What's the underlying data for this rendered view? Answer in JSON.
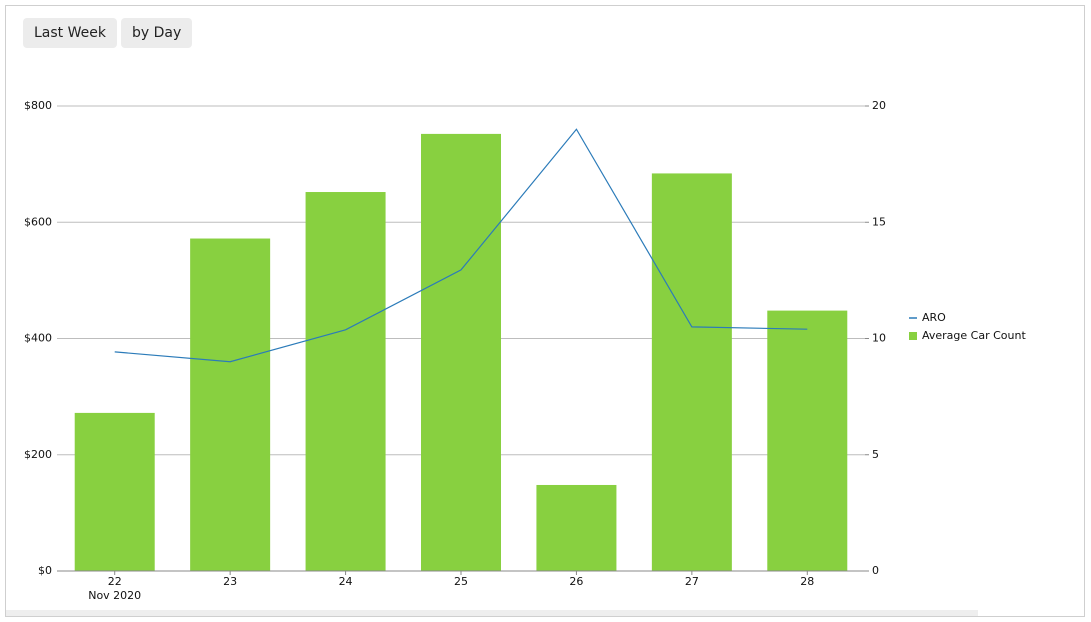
{
  "toolbar": {
    "buttons": [
      "Last Week",
      "by Day"
    ]
  },
  "chart_data": {
    "type": "bar-line",
    "categories": [
      "22",
      "23",
      "24",
      "25",
      "26",
      "27",
      "28"
    ],
    "x_sublabel": "Nov 2020",
    "series": [
      {
        "name": "ARO",
        "type": "line",
        "color": "#2b7bb9",
        "axis": "y",
        "values": [
          377,
          360,
          415,
          518,
          760,
          420,
          416
        ]
      },
      {
        "name": "Average Car Count",
        "type": "bar",
        "color": "#88d040",
        "axis": "y2",
        "values": [
          6.8,
          14.3,
          16.3,
          18.8,
          3.7,
          17.1,
          11.2
        ]
      }
    ],
    "ylim": [
      0,
      800
    ],
    "yticks": [
      {
        "value": 0,
        "label": "$0"
      },
      {
        "value": 200,
        "label": "$200"
      },
      {
        "value": 400,
        "label": "$400"
      },
      {
        "value": 600,
        "label": "$600"
      },
      {
        "value": 800,
        "label": "$800"
      }
    ],
    "y2lim": [
      0,
      20
    ],
    "y2ticks": [
      0,
      5,
      10,
      15,
      20
    ],
    "grid": true,
    "legend": "right"
  }
}
